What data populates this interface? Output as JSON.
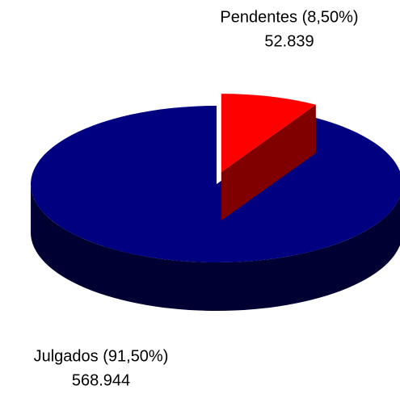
{
  "chart_data": {
    "type": "pie3d",
    "categories": [
      "Pendentes (8,50%)",
      "Julgados (91,50%)"
    ],
    "values": [
      52839,
      568944
    ],
    "value_labels": [
      "52.839",
      "568.944"
    ],
    "colors": [
      "#ff0000",
      "#000080"
    ]
  }
}
